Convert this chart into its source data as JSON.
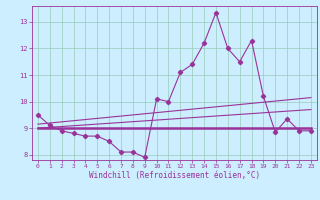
{
  "title": "",
  "xlabel": "Windchill (Refroidissement éolien,°C)",
  "bg_color": "#cceeff",
  "line_color": "#993399",
  "grid_color": "#99ccbb",
  "xlim": [
    -0.5,
    23.5
  ],
  "ylim": [
    7.8,
    13.6
  ],
  "xticks": [
    0,
    1,
    2,
    3,
    4,
    5,
    6,
    7,
    8,
    9,
    10,
    11,
    12,
    13,
    14,
    15,
    16,
    17,
    18,
    19,
    20,
    21,
    22,
    23
  ],
  "yticks": [
    8,
    9,
    10,
    11,
    12,
    13
  ],
  "x_data": [
    0,
    1,
    2,
    3,
    4,
    5,
    6,
    7,
    8,
    9,
    10,
    11,
    12,
    13,
    14,
    15,
    16,
    17,
    18,
    19,
    20,
    21,
    22,
    23
  ],
  "line1": [
    9.5,
    9.1,
    8.9,
    8.8,
    8.7,
    8.7,
    8.5,
    8.1,
    8.1,
    7.9,
    10.1,
    10.0,
    11.1,
    11.4,
    12.2,
    13.35,
    12.0,
    11.5,
    12.3,
    10.2,
    8.85,
    9.35,
    8.9,
    8.9
  ],
  "line2": [
    9.0,
    9.0,
    9.0,
    9.0,
    9.0,
    9.0,
    9.0,
    9.0,
    9.0,
    9.0,
    9.0,
    9.0,
    9.0,
    9.0,
    9.0,
    9.0,
    9.0,
    9.0,
    9.0,
    9.0,
    9.0,
    9.0,
    9.0,
    9.0
  ],
  "line3_x": [
    0,
    23
  ],
  "line3_y": [
    9.0,
    9.7
  ],
  "line4_x": [
    0,
    23
  ],
  "line4_y": [
    9.15,
    10.15
  ]
}
